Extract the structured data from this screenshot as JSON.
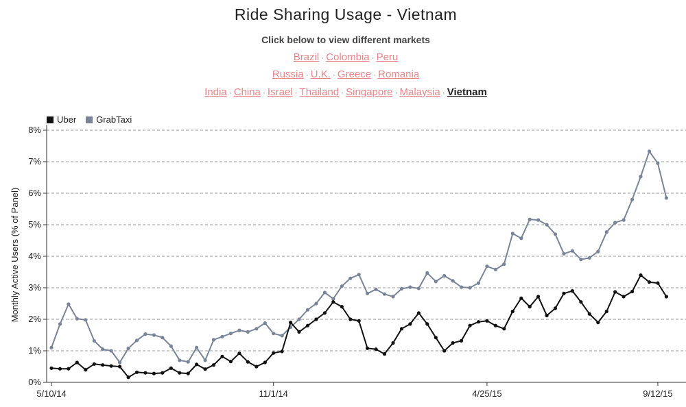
{
  "header": {
    "title": "Ride Sharing Usage - Vietnam",
    "subtitle": "Click below to view different markets"
  },
  "markets": {
    "rows": [
      [
        {
          "label": "Brazil"
        },
        {
          "label": "Colombia"
        },
        {
          "label": "Peru"
        }
      ],
      [
        {
          "label": "Russia"
        },
        {
          "label": "U.K."
        },
        {
          "label": "Greece"
        },
        {
          "label": "Romania"
        }
      ],
      [
        {
          "label": "India"
        },
        {
          "label": "China"
        },
        {
          "label": "Israel"
        },
        {
          "label": "Thailand"
        },
        {
          "label": "Singapore"
        },
        {
          "label": "Malaysia"
        },
        {
          "label": "Vietnam",
          "active": true
        }
      ]
    ],
    "separator": "·"
  },
  "chart_data": {
    "type": "line",
    "ylabel": "Monthly Active Users (% of Panel)",
    "xlabel": "",
    "ylim": [
      0,
      8
    ],
    "yticks": [
      "0%",
      "1%",
      "2%",
      "3%",
      "4%",
      "5%",
      "6%",
      "7%",
      "8%"
    ],
    "xticks": [
      "5/10/14",
      "11/1/14",
      "4/25/15",
      "9/12/15"
    ],
    "grid": true,
    "legend_position": "top-left",
    "series": [
      {
        "name": "Uber",
        "color": "#111111",
        "values": [
          0.45,
          0.43,
          0.43,
          0.63,
          0.4,
          0.58,
          0.55,
          0.52,
          0.5,
          0.16,
          0.32,
          0.3,
          0.28,
          0.3,
          0.45,
          0.3,
          0.28,
          0.57,
          0.42,
          0.55,
          0.82,
          0.66,
          0.92,
          0.65,
          0.5,
          0.63,
          0.93,
          0.98,
          1.9,
          1.6,
          1.8,
          2.0,
          2.2,
          2.55,
          2.4,
          2.0,
          1.95,
          1.08,
          1.05,
          0.9,
          1.25,
          1.7,
          1.85,
          2.2,
          1.85,
          1.42,
          1.0,
          1.25,
          1.32,
          1.8,
          1.92,
          1.95,
          1.8,
          1.7,
          2.25,
          2.67,
          2.4,
          2.72,
          2.12,
          2.35,
          2.82,
          2.9,
          2.55,
          2.17,
          1.9,
          2.25,
          2.87,
          2.72,
          2.88,
          3.4,
          3.18,
          3.15,
          2.72
        ]
      },
      {
        "name": "GrabTaxi",
        "color": "#7a8499",
        "values": [
          1.1,
          1.85,
          2.48,
          2.02,
          1.98,
          1.32,
          1.05,
          1.0,
          0.63,
          1.08,
          1.33,
          1.53,
          1.5,
          1.42,
          1.15,
          0.7,
          0.65,
          1.1,
          0.7,
          1.35,
          1.45,
          1.55,
          1.65,
          1.6,
          1.7,
          1.88,
          1.55,
          1.48,
          1.75,
          2.0,
          2.3,
          2.5,
          2.85,
          2.65,
          3.05,
          3.3,
          3.42,
          2.82,
          2.95,
          2.8,
          2.72,
          2.97,
          3.02,
          2.98,
          3.47,
          3.2,
          3.38,
          3.22,
          3.02,
          3.0,
          3.15,
          3.68,
          3.58,
          3.75,
          4.72,
          4.57,
          5.17,
          5.15,
          5.0,
          4.7,
          4.08,
          4.17,
          3.9,
          3.95,
          4.15,
          4.77,
          5.07,
          5.15,
          5.8,
          6.53,
          7.33,
          6.95,
          5.85
        ]
      }
    ]
  }
}
